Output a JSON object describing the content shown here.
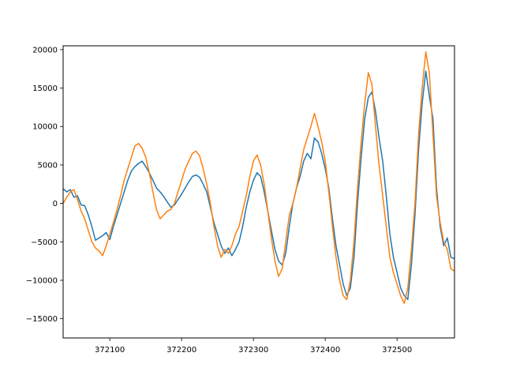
{
  "chart_data": {
    "type": "line",
    "title": "",
    "xlabel": "",
    "ylabel": "",
    "xlim": [
      372035,
      372580
    ],
    "ylim": [
      -17500,
      20500
    ],
    "grid": false,
    "legend": "none",
    "x_ticks": [
      372100,
      372200,
      372300,
      372400,
      372500
    ],
    "x_tick_labels": [
      "372100",
      "372200",
      "372300",
      "372400",
      "372500"
    ],
    "y_ticks": [
      -15000,
      -10000,
      -5000,
      0,
      5000,
      10000,
      15000,
      20000
    ],
    "y_tick_labels": [
      "−15000",
      "−10000",
      "−5000",
      "0",
      "5000",
      "10000",
      "15000",
      "20000"
    ],
    "series": [
      {
        "color": "#1f77b4",
        "points": [
          [
            372035,
            1900
          ],
          [
            372040,
            1500
          ],
          [
            372045,
            1800
          ],
          [
            372050,
            800
          ],
          [
            372055,
            1000
          ],
          [
            372060,
            -200
          ],
          [
            372065,
            -300
          ],
          [
            372070,
            -1500
          ],
          [
            372075,
            -3000
          ],
          [
            372080,
            -4800
          ],
          [
            372085,
            -4500
          ],
          [
            372090,
            -4200
          ],
          [
            372095,
            -3800
          ],
          [
            372100,
            -4700
          ],
          [
            372105,
            -3000
          ],
          [
            372110,
            -1500
          ],
          [
            372115,
            0
          ],
          [
            372120,
            1500
          ],
          [
            372125,
            3000
          ],
          [
            372130,
            4200
          ],
          [
            372135,
            4800
          ],
          [
            372140,
            5200
          ],
          [
            372145,
            5500
          ],
          [
            372150,
            4800
          ],
          [
            372155,
            4000
          ],
          [
            372160,
            3000
          ],
          [
            372165,
            2000
          ],
          [
            372170,
            1500
          ],
          [
            372175,
            900
          ],
          [
            372180,
            200
          ],
          [
            372185,
            -500
          ],
          [
            372190,
            -200
          ],
          [
            372195,
            500
          ],
          [
            372200,
            1200
          ],
          [
            372205,
            2000
          ],
          [
            372210,
            2800
          ],
          [
            372215,
            3500
          ],
          [
            372220,
            3700
          ],
          [
            372225,
            3400
          ],
          [
            372230,
            2500
          ],
          [
            372235,
            1500
          ],
          [
            372240,
            -500
          ],
          [
            372245,
            -2500
          ],
          [
            372250,
            -4000
          ],
          [
            372255,
            -5500
          ],
          [
            372260,
            -6500
          ],
          [
            372265,
            -5800
          ],
          [
            372270,
            -6800
          ],
          [
            372275,
            -6000
          ],
          [
            372280,
            -5000
          ],
          [
            372285,
            -3000
          ],
          [
            372290,
            -500
          ],
          [
            372295,
            1500
          ],
          [
            372300,
            3000
          ],
          [
            372305,
            4000
          ],
          [
            372310,
            3500
          ],
          [
            372315,
            1500
          ],
          [
            372320,
            -1000
          ],
          [
            372325,
            -3500
          ],
          [
            372330,
            -6000
          ],
          [
            372335,
            -7500
          ],
          [
            372340,
            -8000
          ],
          [
            372345,
            -6500
          ],
          [
            372350,
            -3000
          ],
          [
            372355,
            0
          ],
          [
            372360,
            2000
          ],
          [
            372365,
            3500
          ],
          [
            372370,
            5500
          ],
          [
            372375,
            6500
          ],
          [
            372380,
            5800
          ],
          [
            372385,
            8500
          ],
          [
            372390,
            8000
          ],
          [
            372395,
            6500
          ],
          [
            372400,
            4500
          ],
          [
            372405,
            2000
          ],
          [
            372410,
            -2000
          ],
          [
            372415,
            -5500
          ],
          [
            372420,
            -8000
          ],
          [
            372425,
            -10500
          ],
          [
            372430,
            -12000
          ],
          [
            372435,
            -11000
          ],
          [
            372440,
            -7000
          ],
          [
            372445,
            0
          ],
          [
            372450,
            6000
          ],
          [
            372455,
            11000
          ],
          [
            372460,
            13800
          ],
          [
            372465,
            14500
          ],
          [
            372470,
            12000
          ],
          [
            372475,
            8500
          ],
          [
            372480,
            5500
          ],
          [
            372485,
            1000
          ],
          [
            372490,
            -4000
          ],
          [
            372495,
            -7000
          ],
          [
            372500,
            -9000
          ],
          [
            372505,
            -11000
          ],
          [
            372510,
            -12000
          ],
          [
            372515,
            -12500
          ],
          [
            372520,
            -8000
          ],
          [
            372525,
            -1500
          ],
          [
            372530,
            7000
          ],
          [
            372535,
            13000
          ],
          [
            372540,
            17200
          ],
          [
            372545,
            14000
          ],
          [
            372550,
            11000
          ],
          [
            372555,
            2000
          ],
          [
            372560,
            -3000
          ],
          [
            372565,
            -5500
          ],
          [
            372570,
            -4500
          ],
          [
            372575,
            -7000
          ],
          [
            372580,
            -7200
          ]
        ]
      },
      {
        "color": "#ff7f0e",
        "points": [
          [
            372035,
            0
          ],
          [
            372040,
            800
          ],
          [
            372045,
            1500
          ],
          [
            372050,
            1800
          ],
          [
            372055,
            500
          ],
          [
            372060,
            -1000
          ],
          [
            372065,
            -2000
          ],
          [
            372070,
            -3500
          ],
          [
            372075,
            -5000
          ],
          [
            372080,
            -5800
          ],
          [
            372085,
            -6200
          ],
          [
            372090,
            -6800
          ],
          [
            372095,
            -5500
          ],
          [
            372100,
            -4000
          ],
          [
            372105,
            -2500
          ],
          [
            372110,
            -800
          ],
          [
            372115,
            1000
          ],
          [
            372120,
            3000
          ],
          [
            372125,
            4500
          ],
          [
            372130,
            6000
          ],
          [
            372135,
            7500
          ],
          [
            372140,
            7800
          ],
          [
            372145,
            7200
          ],
          [
            372150,
            6000
          ],
          [
            372155,
            4000
          ],
          [
            372160,
            1500
          ],
          [
            372165,
            -800
          ],
          [
            372170,
            -2000
          ],
          [
            372175,
            -1500
          ],
          [
            372180,
            -1000
          ],
          [
            372185,
            -800
          ],
          [
            372190,
            0
          ],
          [
            372195,
            1500
          ],
          [
            372200,
            3000
          ],
          [
            372205,
            4500
          ],
          [
            372210,
            5500
          ],
          [
            372215,
            6500
          ],
          [
            372220,
            6800
          ],
          [
            372225,
            6200
          ],
          [
            372230,
            4500
          ],
          [
            372235,
            2500
          ],
          [
            372240,
            0
          ],
          [
            372245,
            -3000
          ],
          [
            372250,
            -5500
          ],
          [
            372255,
            -7000
          ],
          [
            372260,
            -6000
          ],
          [
            372265,
            -6500
          ],
          [
            372270,
            -5500
          ],
          [
            372275,
            -4000
          ],
          [
            372280,
            -3000
          ],
          [
            372285,
            -1000
          ],
          [
            372290,
            1000
          ],
          [
            372295,
            3500
          ],
          [
            372300,
            5500
          ],
          [
            372305,
            6300
          ],
          [
            372310,
            5000
          ],
          [
            372315,
            2500
          ],
          [
            372320,
            -1000
          ],
          [
            372325,
            -4500
          ],
          [
            372330,
            -7500
          ],
          [
            372335,
            -9500
          ],
          [
            372340,
            -8500
          ],
          [
            372345,
            -5000
          ],
          [
            372350,
            -1500
          ],
          [
            372355,
            0
          ],
          [
            372360,
            2000
          ],
          [
            372365,
            4500
          ],
          [
            372370,
            7000
          ],
          [
            372375,
            8500
          ],
          [
            372380,
            10000
          ],
          [
            372385,
            11700
          ],
          [
            372390,
            10000
          ],
          [
            372395,
            8000
          ],
          [
            372400,
            5500
          ],
          [
            372405,
            1500
          ],
          [
            372410,
            -3000
          ],
          [
            372415,
            -7000
          ],
          [
            372420,
            -10000
          ],
          [
            372425,
            -12000
          ],
          [
            372430,
            -12500
          ],
          [
            372435,
            -10000
          ],
          [
            372440,
            -5000
          ],
          [
            372445,
            2000
          ],
          [
            372450,
            8000
          ],
          [
            372455,
            13000
          ],
          [
            372460,
            17000
          ],
          [
            372465,
            15500
          ],
          [
            372470,
            10000
          ],
          [
            372475,
            5000
          ],
          [
            372480,
            1000
          ],
          [
            372485,
            -3000
          ],
          [
            372490,
            -7000
          ],
          [
            372495,
            -9000
          ],
          [
            372500,
            -10500
          ],
          [
            372505,
            -12000
          ],
          [
            372510,
            -13000
          ],
          [
            372515,
            -11000
          ],
          [
            372520,
            -6000
          ],
          [
            372525,
            0
          ],
          [
            372530,
            9000
          ],
          [
            372535,
            15000
          ],
          [
            372540,
            19700
          ],
          [
            372545,
            17000
          ],
          [
            372550,
            9000
          ],
          [
            372555,
            1000
          ],
          [
            372560,
            -2500
          ],
          [
            372565,
            -5000
          ],
          [
            372570,
            -6000
          ],
          [
            372575,
            -8500
          ],
          [
            372580,
            -8800
          ]
        ]
      }
    ]
  }
}
